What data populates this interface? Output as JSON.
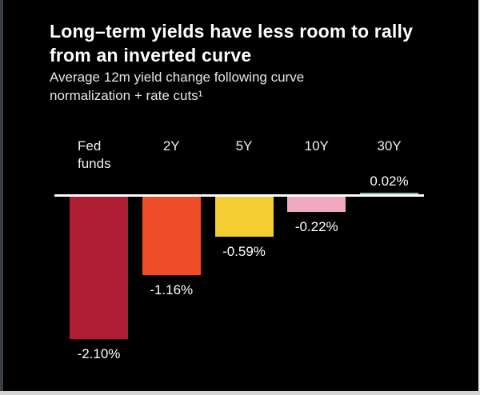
{
  "card": {
    "title_lines": [
      "Long–term yields have less room to rally",
      "from an inverted curve"
    ],
    "subtitle_lines": [
      "Average 12m yield change following curve",
      "normalization + rate cuts¹"
    ]
  },
  "chart_data": {
    "type": "bar",
    "title": "Long–term yields have less room to rally from an inverted curve",
    "subtitle": "Average 12m yield change following curve normalization + rate cuts¹",
    "categories": [
      "Fed funds",
      "2Y",
      "5Y",
      "10Y",
      "30Y"
    ],
    "values": [
      -2.1,
      -1.16,
      -0.59,
      -0.22,
      0.02
    ],
    "value_labels": [
      "-2.10%",
      "-1.16%",
      "-0.59%",
      "-0.22%",
      "0.02%"
    ],
    "bar_colors": [
      "#b01e33",
      "#ef4c2a",
      "#f3cd32",
      "#f2a7c3",
      "#6cc493"
    ],
    "baseline_color": "#ffffff",
    "ylabel": "",
    "xlabel": "",
    "ylim": [
      -2.3,
      0.3
    ],
    "grid": false,
    "legend": false,
    "background": "#000000",
    "text_color": "#ffffff"
  }
}
